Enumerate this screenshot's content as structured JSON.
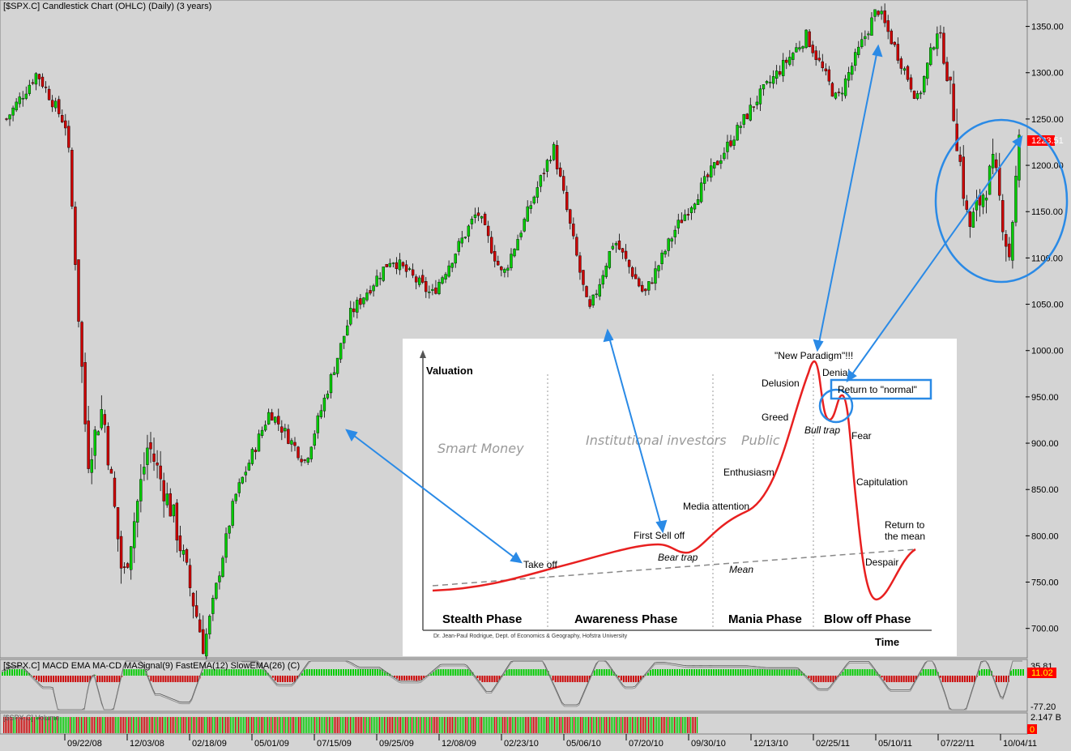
{
  "main_title": "[$SPX.C] Candlestick Chart (OHLC) (Daily) (3 years)",
  "macd_title": "[$SPX.C] MACD EMA MA-CD MASignal(9) FastEMA(12) SlowEMA(26) (C)",
  "volume_title": "[$SPX.C] Volume",
  "last_price": "1223.51",
  "macd_top_label": "35.81",
  "macd_value": "11.02",
  "macd_bottom_label": "-77.20",
  "volume_top_label": "2.147 B",
  "volume_bottom_label": "0",
  "colors": {
    "up": "#00cc00",
    "down": "#cc0000",
    "arrow": "#2a8ae6",
    "curve": "#e82020",
    "badge": "#ff0000"
  },
  "chart_data": [
    {
      "type": "candlestick",
      "title": "[$SPX.C] Candlestick Chart (OHLC) (Daily) (3 years)",
      "y_ticks": [
        700,
        750,
        800,
        850,
        900,
        950,
        1000,
        1050,
        1100,
        1150,
        1200,
        1250,
        1300,
        1350
      ],
      "ylim": [
        670,
        1375
      ],
      "x_ticks": [
        "09/22/08",
        "12/03/08",
        "02/18/09",
        "05/01/09",
        "07/15/09",
        "09/25/09",
        "12/08/09",
        "02/23/10",
        "05/06/10",
        "07/20/10",
        "09/30/10",
        "12/13/10",
        "02/25/11",
        "05/10/11",
        "07/22/11",
        "10/04/11"
      ],
      "approx_close_path": [
        {
          "x": 0,
          "y": 1250
        },
        {
          "x": 0.03,
          "y": 1300
        },
        {
          "x": 0.06,
          "y": 1240
        },
        {
          "x": 0.08,
          "y": 880
        },
        {
          "x": 0.095,
          "y": 940
        },
        {
          "x": 0.115,
          "y": 750
        },
        {
          "x": 0.14,
          "y": 900
        },
        {
          "x": 0.165,
          "y": 820
        },
        {
          "x": 0.195,
          "y": 680
        },
        {
          "x": 0.225,
          "y": 840
        },
        {
          "x": 0.26,
          "y": 935
        },
        {
          "x": 0.295,
          "y": 880
        },
        {
          "x": 0.34,
          "y": 1040
        },
        {
          "x": 0.38,
          "y": 1100
        },
        {
          "x": 0.42,
          "y": 1060
        },
        {
          "x": 0.465,
          "y": 1150
        },
        {
          "x": 0.49,
          "y": 1080
        },
        {
          "x": 0.54,
          "y": 1220
        },
        {
          "x": 0.575,
          "y": 1040
        },
        {
          "x": 0.6,
          "y": 1120
        },
        {
          "x": 0.63,
          "y": 1060
        },
        {
          "x": 0.66,
          "y": 1130
        },
        {
          "x": 0.7,
          "y": 1200
        },
        {
          "x": 0.74,
          "y": 1270
        },
        {
          "x": 0.79,
          "y": 1340
        },
        {
          "x": 0.82,
          "y": 1270
        },
        {
          "x": 0.86,
          "y": 1370
        },
        {
          "x": 0.9,
          "y": 1270
        },
        {
          "x": 0.92,
          "y": 1350
        },
        {
          "x": 0.935,
          "y": 1260
        },
        {
          "x": 0.95,
          "y": 1130
        },
        {
          "x": 0.975,
          "y": 1200
        },
        {
          "x": 0.99,
          "y": 1100
        },
        {
          "x": 1.0,
          "y": 1223.51
        }
      ],
      "last_value": 1223.51
    },
    {
      "type": "line",
      "title": "[$SPX.C] MACD EMA MA-CD MASignal(9) FastEMA(12) SlowEMA(26) (C)",
      "y_ticks": [
        "35.81",
        "-77.20"
      ],
      "last_value": 11.02
    },
    {
      "type": "bar",
      "title": "[$SPX.C] Volume",
      "y_ticks": [
        "2.147 B",
        "0"
      ]
    }
  ],
  "inset": {
    "y_label": "Valuation",
    "x_label": "Time",
    "groups": [
      "Smart Money",
      "Institutional investors",
      "Public"
    ],
    "phases": [
      "Stealth Phase",
      "Awareness Phase",
      "Mania Phase",
      "Blow off Phase"
    ],
    "annotations": {
      "take_off": "Take off",
      "first_sell_off": "First Sell off",
      "bear_trap": "Bear trap",
      "media_attention": "Media attention",
      "enthusiasm": "Enthusiasm",
      "greed": "Greed",
      "delusion": "Delusion",
      "new_paradigm": "\"New Paradigm\"!!!",
      "denial": "Denial",
      "return_normal": "Return to \"normal\"",
      "bull_trap": "Bull trap",
      "fear": "Fear",
      "capitulation": "Capitulation",
      "return_mean_1": "Return to",
      "return_mean_2": "the mean",
      "despair": "Despair",
      "mean": "Mean"
    },
    "credit": "Dr. Jean-Paul Rodrigue, Dept. of Economics & Geography, Hofstra University"
  }
}
